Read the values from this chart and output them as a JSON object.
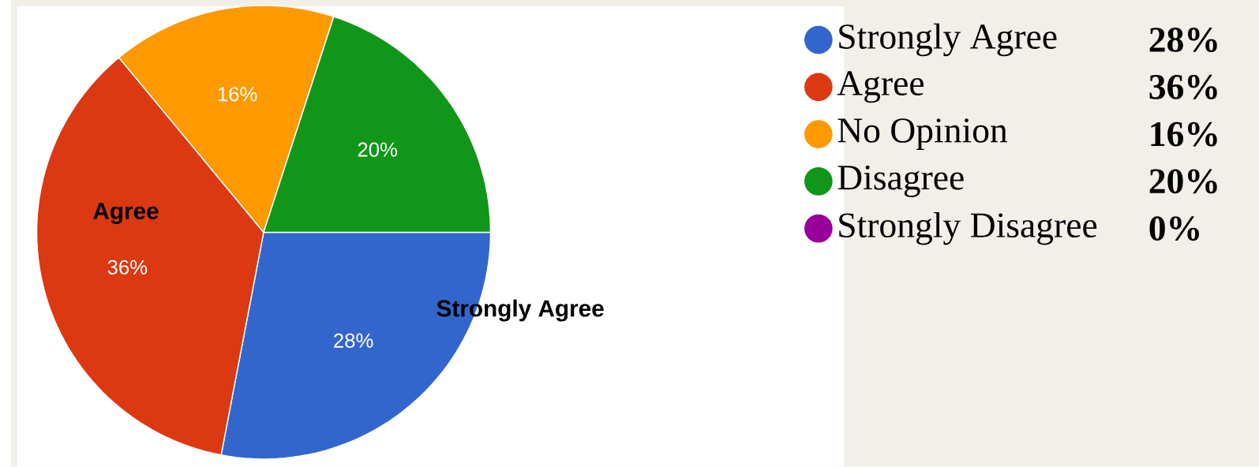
{
  "chart_data": {
    "type": "pie",
    "categories": [
      "Strongly Agree",
      "Agree",
      "No Opinion",
      "Disagree",
      "Strongly Disagree"
    ],
    "values": [
      28,
      36,
      16,
      20,
      0
    ],
    "colors": [
      "#3366cc",
      "#dc3912",
      "#ff9900",
      "#109618",
      "#990099"
    ],
    "value_labels": [
      "28%",
      "36%",
      "16%",
      "20%",
      "0%"
    ],
    "legend": "right",
    "annotations": [
      "Agree",
      "Strongly Agree"
    ]
  }
}
